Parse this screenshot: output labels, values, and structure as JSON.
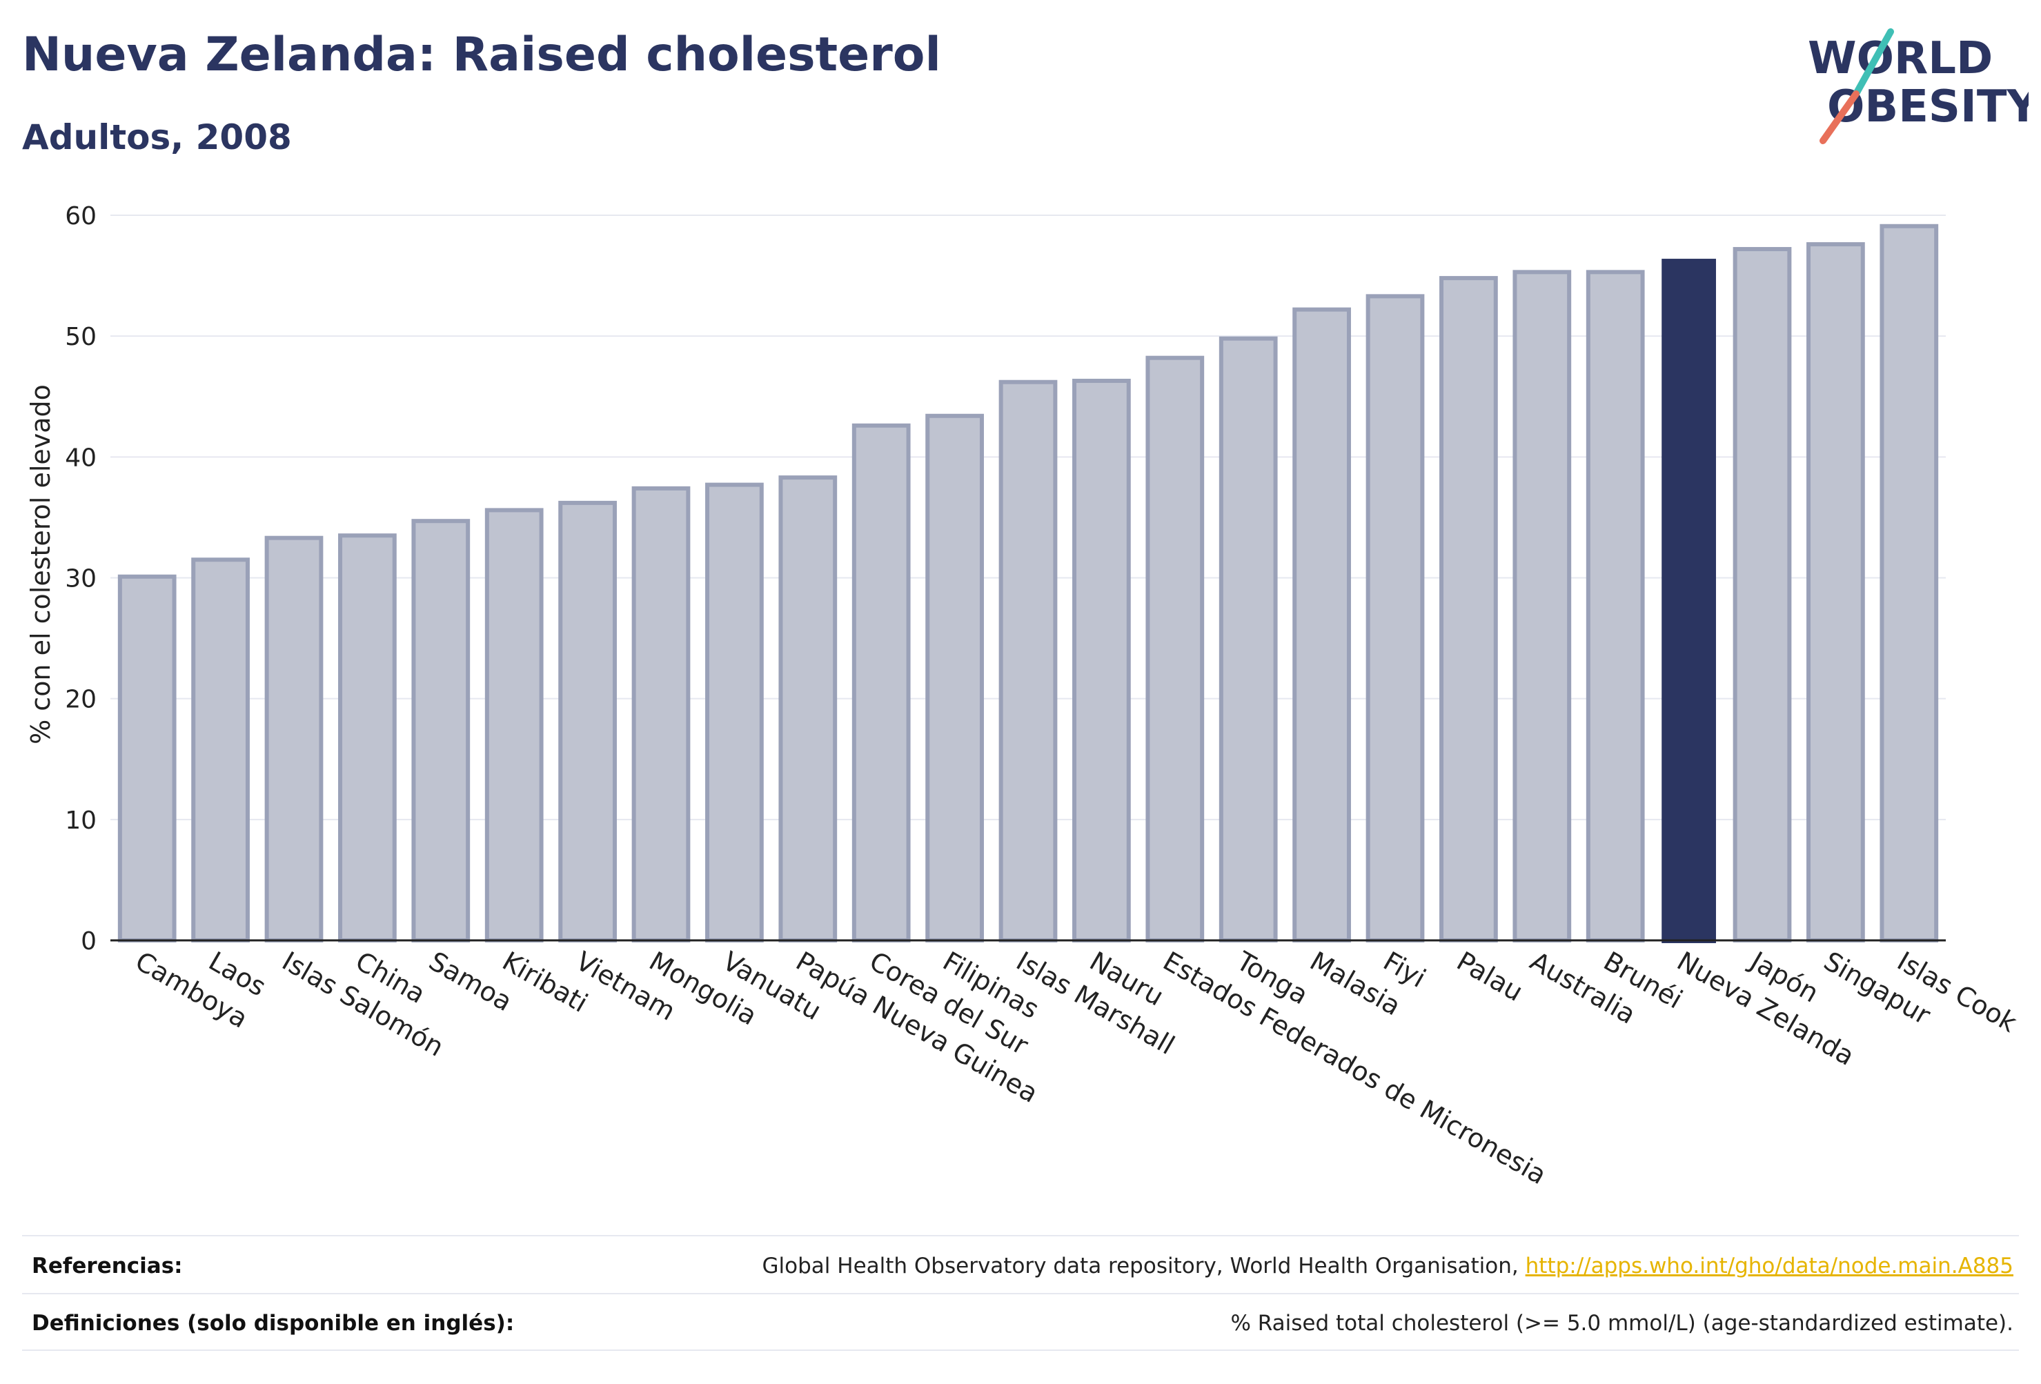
{
  "header": {
    "title": "Nueva Zelanda: Raised cholesterol",
    "subtitle": "Adultos, 2008"
  },
  "logo": {
    "line1": "WORLD",
    "line2": "OBESITY"
  },
  "chart_data": {
    "type": "bar",
    "categories": [
      "Camboya",
      "Laos",
      "Islas Salomón",
      "China",
      "Samoa",
      "Kiribati",
      "Vietnam",
      "Mongolia",
      "Vanuatu",
      "Papúa Nueva Guinea",
      "Corea del Sur",
      "Filipinas",
      "Islas Marshall",
      "Nauru",
      "Estados Federados de Micronesia",
      "Tonga",
      "Malasia",
      "Fiyi",
      "Palau",
      "Australia",
      "Brunéi",
      "Nueva Zelanda",
      "Japón",
      "Singapur",
      "Islas Cook"
    ],
    "values": [
      30.1,
      31.5,
      33.3,
      33.5,
      34.7,
      35.6,
      36.2,
      37.4,
      37.7,
      38.3,
      42.6,
      43.4,
      46.2,
      46.3,
      48.2,
      49.8,
      52.2,
      53.3,
      54.8,
      55.3,
      55.3,
      56.4,
      57.2,
      57.6,
      59.1
    ],
    "highlight": "Nueva Zelanda",
    "ylabel": "% con el colesterol elevado",
    "xlabel": "",
    "ylim": [
      0,
      60
    ],
    "yticks": [
      0,
      10,
      20,
      30,
      40,
      50,
      60
    ],
    "grid": true,
    "colors": {
      "bar": "#bfc3d0",
      "bar_stroke": "#9aa1b8",
      "highlight": "#2b3561",
      "grid": "#e6e8f0",
      "axis": "#222222"
    }
  },
  "footer": {
    "references_label": "Referencias:",
    "references_text": "Global Health Observatory data repository, World Health Organisation, ",
    "references_link": "http://apps.who.int/gho/data/node.main.A885",
    "definitions_label": "Definiciones (solo disponible en inglés):",
    "definitions_text": "% Raised total cholesterol (>= 5.0 mmol/L) (age-standardized estimate)."
  }
}
